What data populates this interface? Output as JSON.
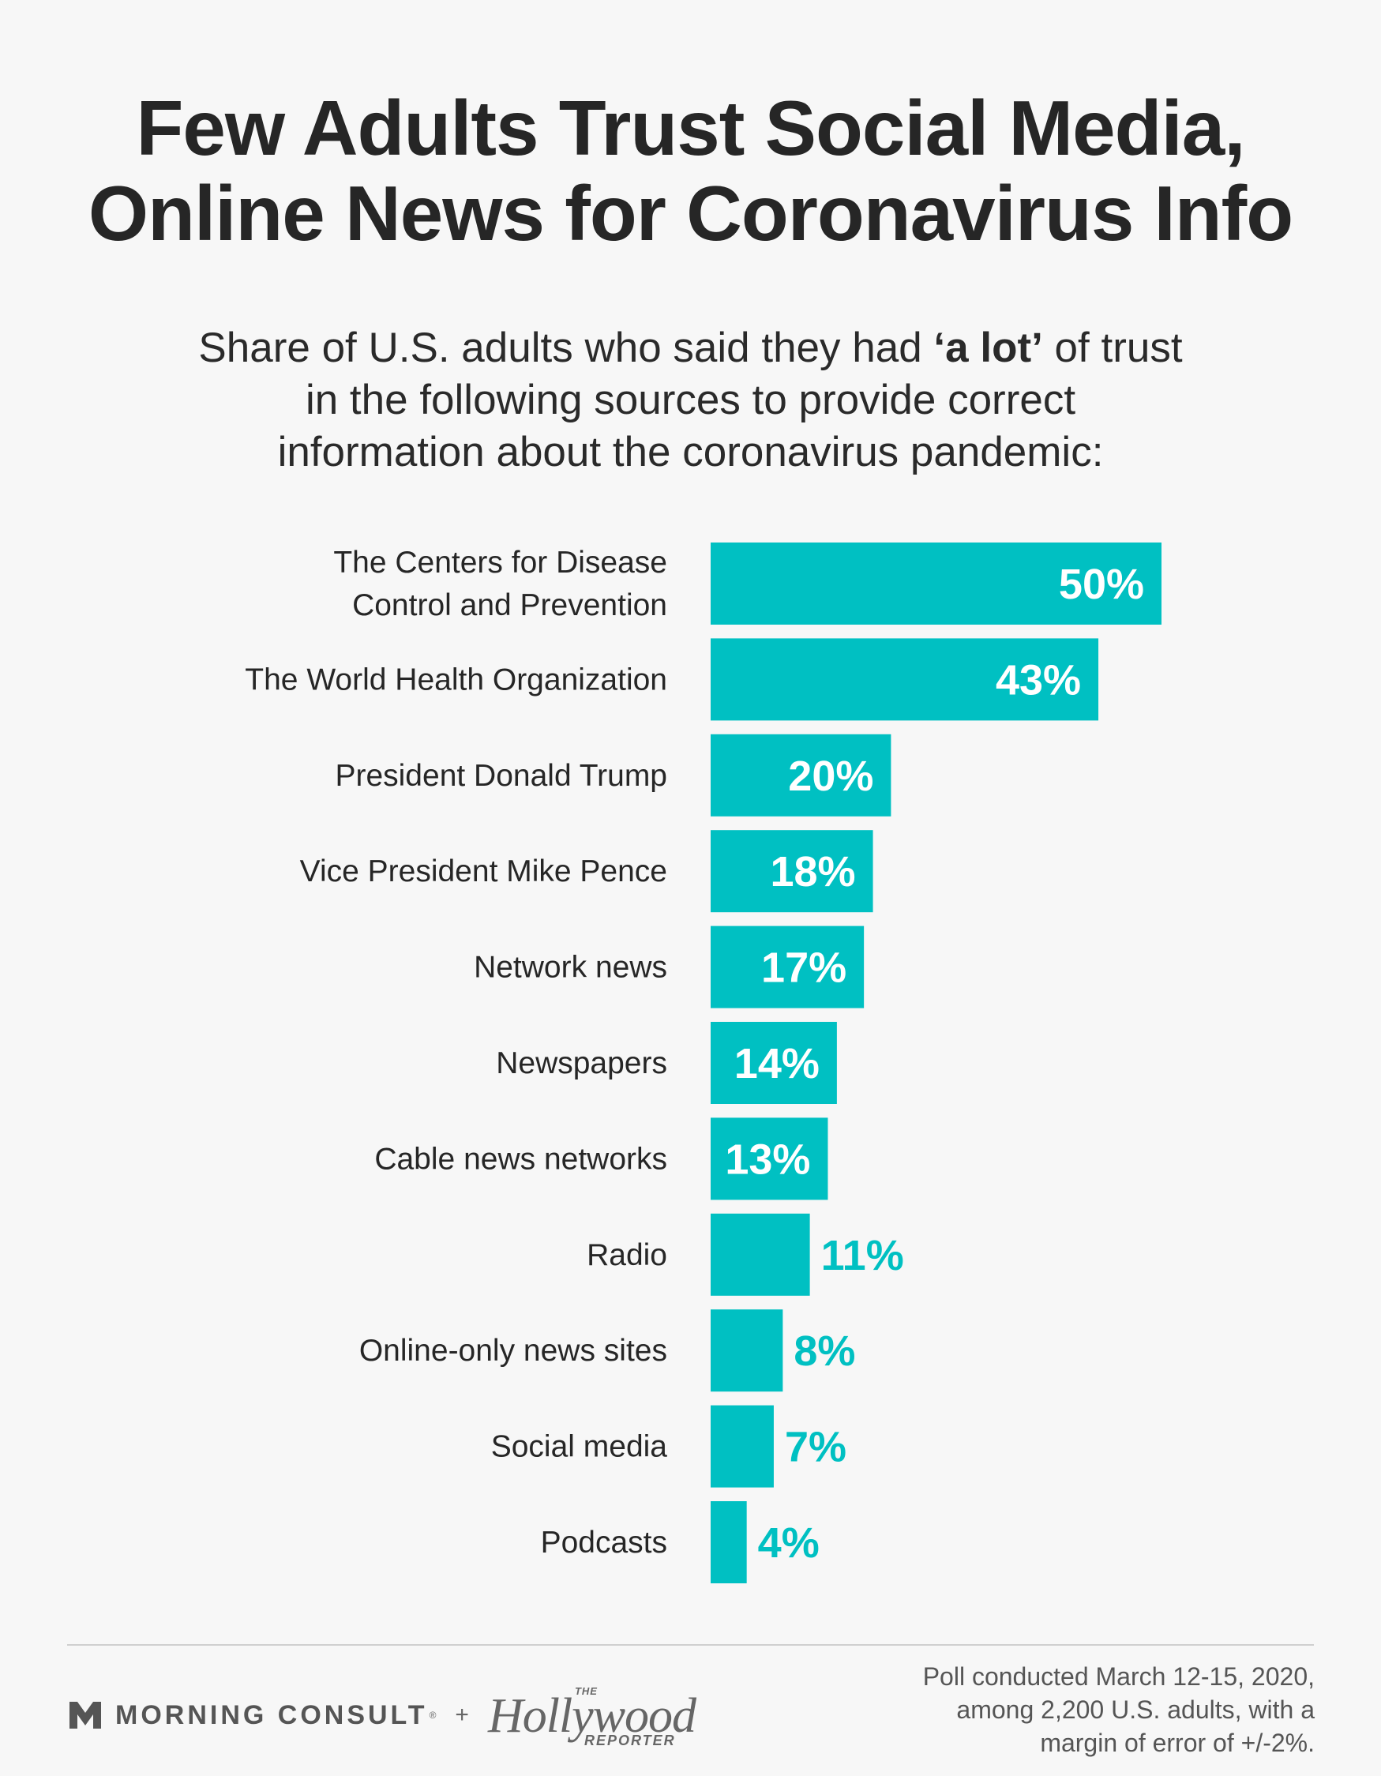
{
  "title_line1": "Few Adults Trust Social Media,",
  "title_line2": "Online News for Coronavirus Info",
  "subtitle": {
    "line1_pre": "Share of U.S. adults who said they had ",
    "line1_bold": "‘a lot’",
    "line1_post": " of trust",
    "line2": "in the following sources to provide correct",
    "line3": "information about the coronavirus pandemic:"
  },
  "chart_data": {
    "type": "bar",
    "orientation": "horizontal",
    "categories": [
      [
        "The Centers for Disease",
        "Control and Prevention"
      ],
      [
        "The World Health Organization"
      ],
      [
        "President Donald Trump"
      ],
      [
        "Vice President Mike Pence"
      ],
      [
        "Network news"
      ],
      [
        "Newspapers"
      ],
      [
        "Cable news networks"
      ],
      [
        "Radio"
      ],
      [
        "Online-only news sites"
      ],
      [
        "Social media"
      ],
      [
        "Podcasts"
      ]
    ],
    "values": [
      50,
      43,
      20,
      18,
      17,
      14,
      13,
      11,
      8,
      7,
      4
    ],
    "value_labels": [
      "50%",
      "43%",
      "20%",
      "18%",
      "17%",
      "14%",
      "13%",
      "11%",
      "8%",
      "7%",
      "4%"
    ],
    "bar_color": "#00c0c2",
    "label_inside_color": "#ffffff",
    "label_outside_color": "#00c0c2"
  },
  "footer": {
    "brand1": "MORNING CONSULT",
    "brand1_tm": "®",
    "plus": "+",
    "brand2_the": "THE",
    "brand2_main": "Hollywood",
    "brand2_sub": "REPORTER",
    "source_line1": "Poll conducted March 12-15, 2020,",
    "source_line2": "among 2,200 U.S. adults, with a",
    "source_line3": "margin of error of +/-2%."
  }
}
